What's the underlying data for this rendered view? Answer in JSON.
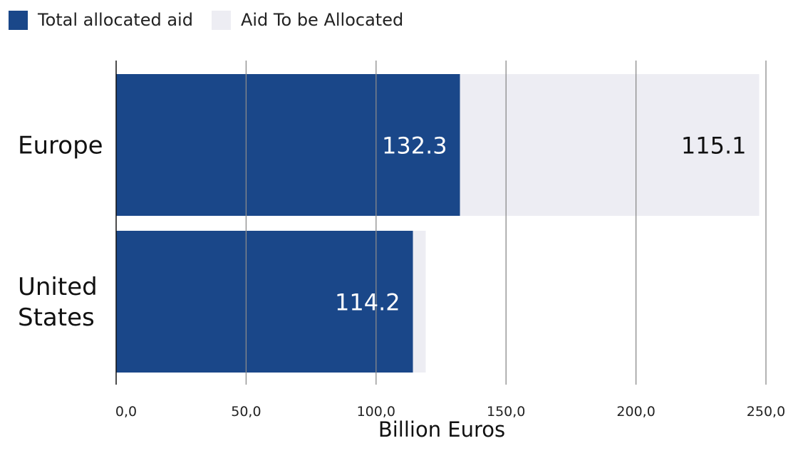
{
  "chart_data": {
    "type": "bar",
    "orientation": "horizontal",
    "stacked": true,
    "categories": [
      "Europe",
      "United States"
    ],
    "category_lines": [
      [
        "Europe"
      ],
      [
        "United",
        "States"
      ]
    ],
    "series": [
      {
        "name": "Total allocated aid",
        "color": "#1a4789",
        "values": [
          132.3,
          114.2
        ],
        "labels": [
          "132.3",
          "114.2"
        ]
      },
      {
        "name": "Aid To be Allocated",
        "color": "#ededf3",
        "values": [
          115.1,
          4.9
        ],
        "labels": [
          "115.1",
          ""
        ]
      }
    ],
    "xlabel": "Billion Euros",
    "xlim": [
      0,
      250
    ],
    "xticks": [
      0,
      50,
      100,
      150,
      200,
      250
    ],
    "xtick_labels": [
      "0,0",
      "50,0",
      "100,0",
      "150,0",
      "200,0",
      "250,0"
    ],
    "grid": true,
    "legend": "top-left"
  }
}
